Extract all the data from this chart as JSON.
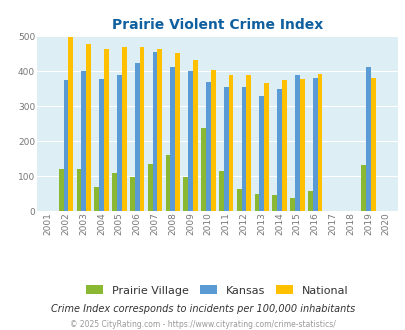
{
  "title": "Prairie Violent Crime Index",
  "years": [
    2001,
    2002,
    2003,
    2004,
    2005,
    2006,
    2007,
    2008,
    2009,
    2010,
    2011,
    2012,
    2013,
    2014,
    2015,
    2016,
    2017,
    2018,
    2019,
    2020
  ],
  "prairie_village": [
    0,
    120,
    120,
    68,
    110,
    97,
    135,
    160,
    97,
    238,
    115,
    63,
    50,
    47,
    37,
    57,
    0,
    0,
    133,
    0
  ],
  "kansas": [
    0,
    376,
    400,
    377,
    390,
    423,
    456,
    411,
    400,
    370,
    355,
    355,
    328,
    349,
    390,
    382,
    0,
    0,
    411,
    0
  ],
  "national": [
    0,
    497,
    477,
    464,
    469,
    469,
    464,
    453,
    431,
    404,
    388,
    389,
    367,
    376,
    379,
    393,
    0,
    0,
    380,
    0
  ],
  "prairie_color": "#8ab832",
  "kansas_color": "#5b9bd5",
  "national_color": "#ffc000",
  "bg_color": "#ddeef5",
  "title_color": "#1060a0",
  "subtitle": "Crime Index corresponds to incidents per 100,000 inhabitants",
  "footer": "© 2025 CityRating.com - https://www.cityrating.com/crime-statistics/",
  "ylim": [
    0,
    500
  ],
  "yticks": [
    0,
    100,
    200,
    300,
    400,
    500
  ],
  "legend_labels": [
    "Prairie Village",
    "Kansas",
    "National"
  ]
}
